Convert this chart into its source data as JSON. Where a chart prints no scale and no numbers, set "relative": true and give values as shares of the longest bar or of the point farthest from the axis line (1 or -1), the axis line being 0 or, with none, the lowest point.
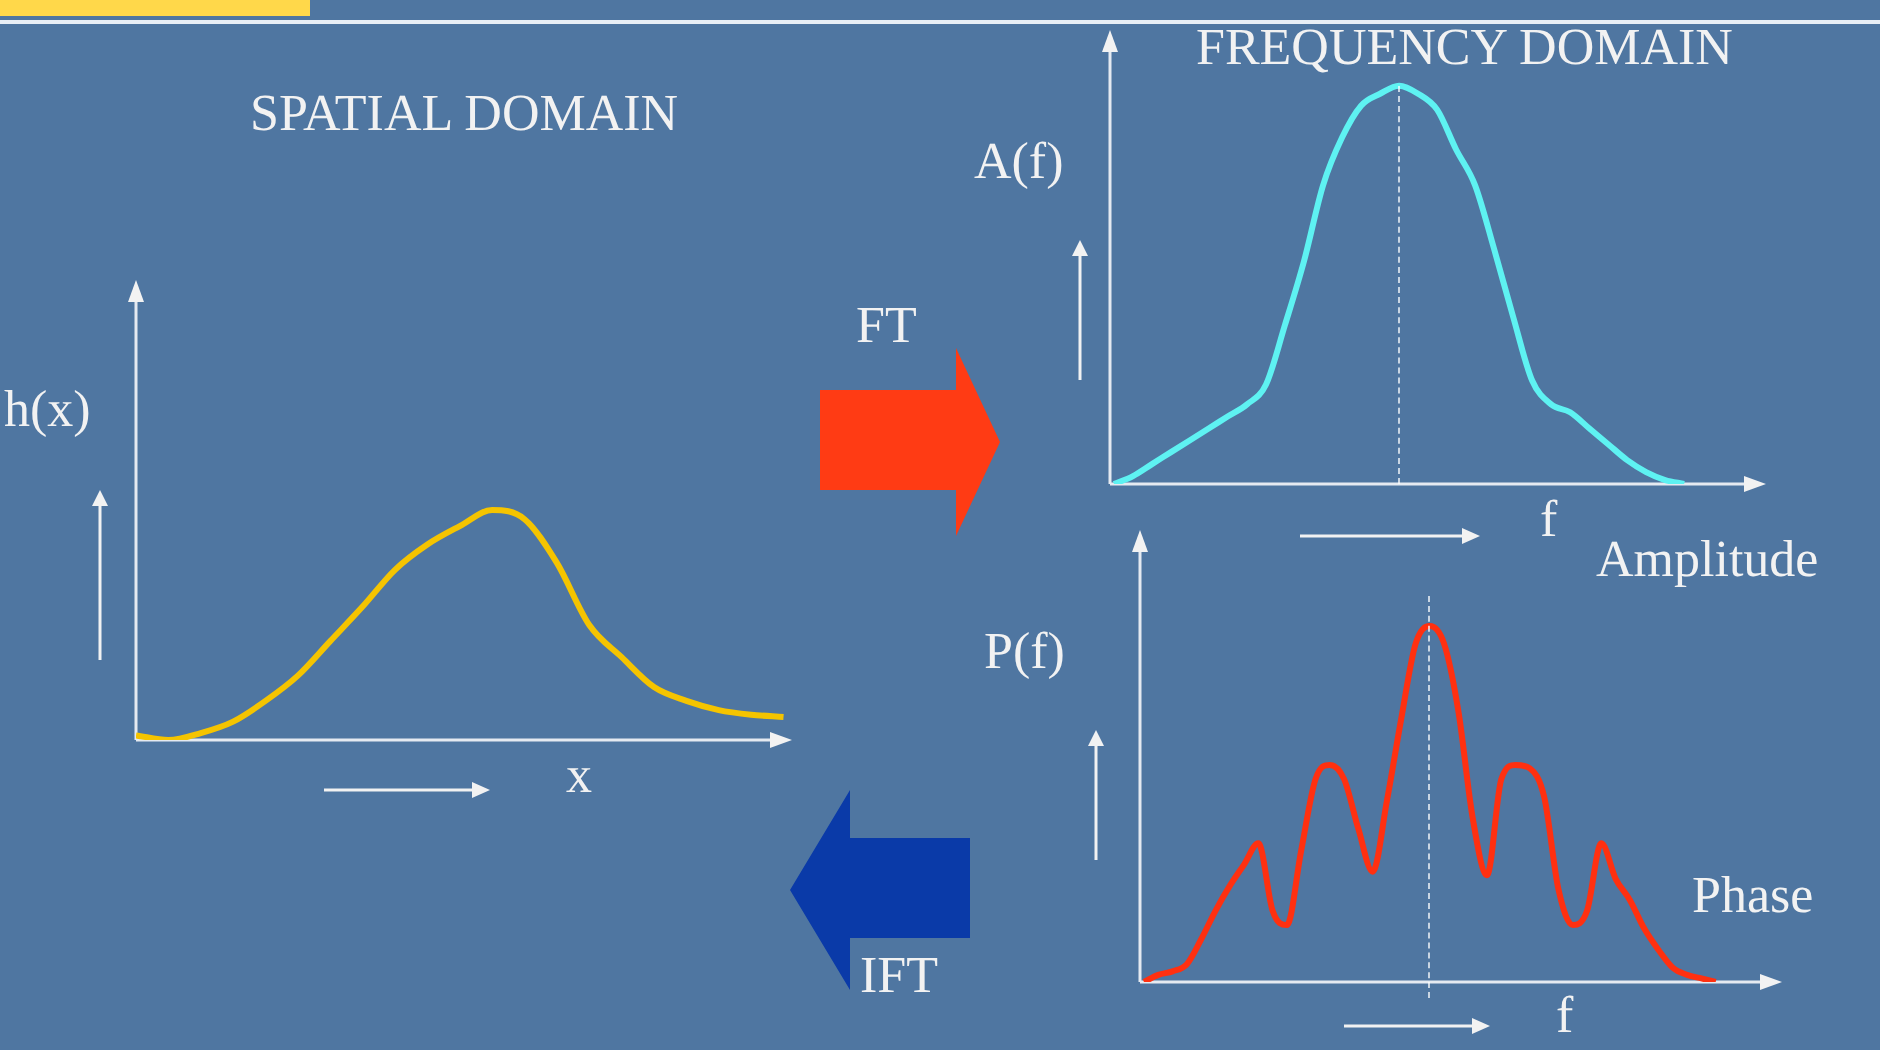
{
  "chart_data": [
    {
      "type": "line",
      "title": "SPATIAL DOMAIN",
      "xlabel": "x",
      "ylabel": "h(x)",
      "relative": true,
      "categories": [
        null,
        null,
        null,
        null,
        null,
        null,
        null,
        null,
        null,
        null,
        null,
        null,
        null,
        null,
        null,
        null,
        null,
        null,
        null,
        null,
        null
      ],
      "series": [
        {
          "color": "#f5c400",
          "values": [
            0.02,
            0.0,
            0.03,
            0.08,
            0.17,
            0.28,
            0.43,
            0.58,
            0.74,
            0.85,
            0.93,
            1,
            0.96,
            0.77,
            0.5,
            0.36,
            0.23,
            0.17,
            0.13,
            0.11,
            0.1
          ]
        }
      ]
    },
    {
      "type": "line",
      "title": "FREQUENCY DOMAIN",
      "xlabel": "f",
      "ylabel": "A(f)",
      "annotations": [
        "Amplitude"
      ],
      "relative": true,
      "categories": [
        null,
        null,
        null,
        null,
        null,
        null,
        null,
        null,
        null,
        null,
        null,
        null,
        null,
        null,
        null,
        null,
        null,
        null,
        null,
        null,
        null,
        null,
        null,
        null,
        null,
        null,
        null,
        null,
        null,
        null,
        null
      ],
      "series": [
        {
          "color": "#5ef2f2",
          "values": [
            0,
            0.02,
            0.05,
            0.08,
            0.11,
            0.14,
            0.17,
            0.2,
            0.25,
            0.4,
            0.56,
            0.75,
            0.87,
            0.95,
            0.98,
            1,
            0.98,
            0.94,
            0.84,
            0.75,
            0.59,
            0.42,
            0.26,
            0.2,
            0.18,
            0.14,
            0.1,
            0.06,
            0.03,
            0.01,
            0
          ]
        }
      ]
    },
    {
      "type": "line",
      "xlabel": "f",
      "ylabel": "P(f)",
      "annotations": [
        "Phase"
      ],
      "relative": true,
      "categories": [
        null,
        null,
        null,
        null,
        null,
        null,
        null,
        null,
        null,
        null,
        null,
        null,
        null,
        null,
        null,
        null,
        null,
        null,
        null,
        null,
        null,
        null,
        null,
        null,
        null,
        null,
        null,
        null,
        null,
        null,
        null,
        null,
        null,
        null,
        null,
        null,
        null,
        null,
        null,
        null,
        null
      ],
      "series": [
        {
          "color": "#ff3010",
          "values": [
            0,
            0.02,
            0.03,
            0.05,
            0.12,
            0.2,
            0.27,
            0.33,
            0.39,
            0.2,
            0.16,
            0.37,
            0.57,
            0.61,
            0.57,
            0.43,
            0.31,
            0.51,
            0.74,
            0.95,
            1,
            0.95,
            0.76,
            0.46,
            0.3,
            0.57,
            0.61,
            0.6,
            0.52,
            0.26,
            0.16,
            0.2,
            0.39,
            0.29,
            0.23,
            0.15,
            0.09,
            0.04,
            0.02,
            0.01,
            0
          ]
        }
      ]
    },
    {
      "type": "other",
      "annotations": [
        "FT",
        "IFT"
      ]
    }
  ]
}
